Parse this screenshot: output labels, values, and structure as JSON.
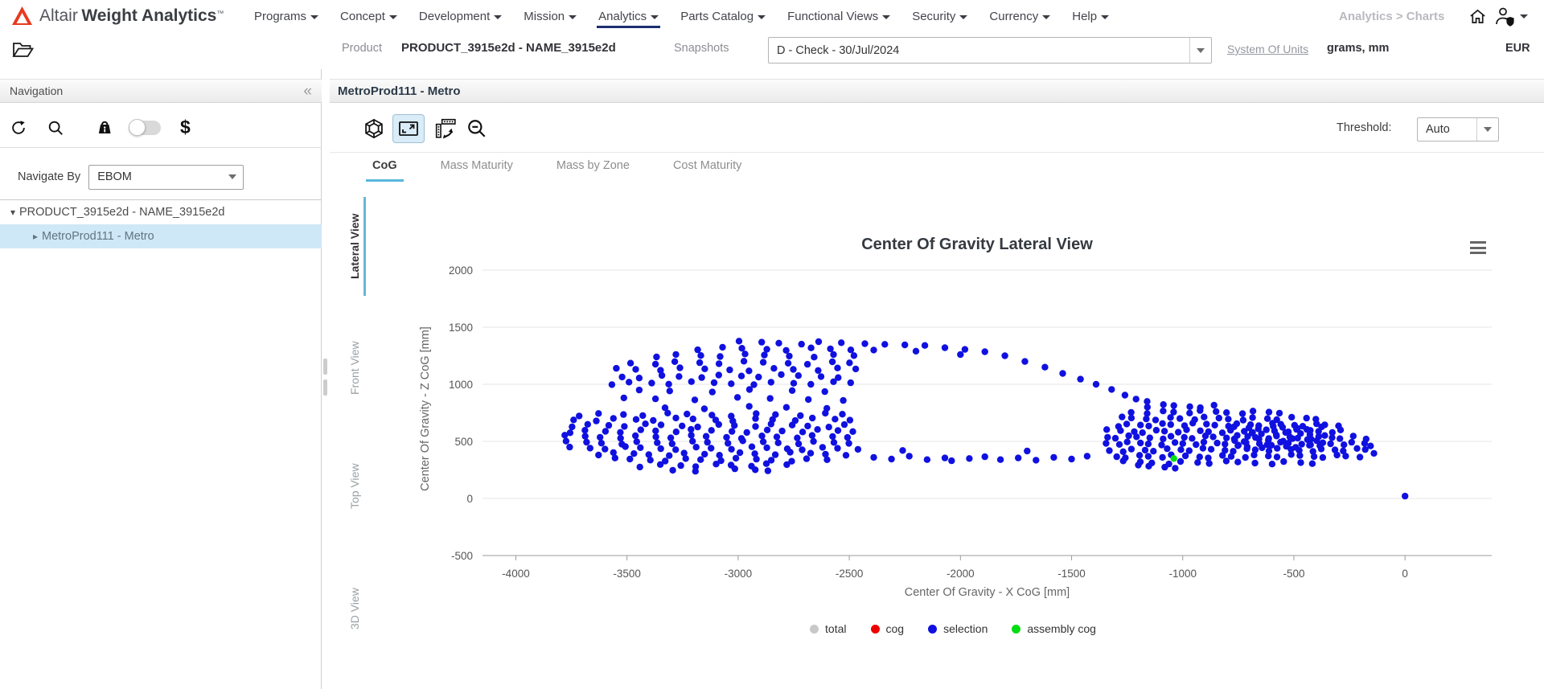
{
  "header": {
    "brand": {
      "company": "Altair",
      "product": "Weight Analytics",
      "tm": "™"
    },
    "menus": [
      {
        "label": "Programs"
      },
      {
        "label": "Concept"
      },
      {
        "label": "Development"
      },
      {
        "label": "Mission"
      },
      {
        "label": "Analytics",
        "active": true
      },
      {
        "label": "Parts Catalog"
      },
      {
        "label": "Functional Views"
      },
      {
        "label": "Security"
      },
      {
        "label": "Currency"
      },
      {
        "label": "Help"
      }
    ],
    "breadcrumb": "Analytics > Charts"
  },
  "subheader": {
    "product_label": "Product",
    "product_value": "PRODUCT_3915e2d - NAME_3915e2d",
    "snapshots_label": "Snapshots",
    "snapshot_value": "D - Check - 30/Jul/2024",
    "units_link": "System Of Units",
    "units_value": "grams, mm",
    "currency": "EUR"
  },
  "navigation": {
    "title": "Navigation",
    "collapse_glyph": "«",
    "navigate_by_label": "Navigate By",
    "navigate_by_value": "EBOM",
    "dollar_glyph": "$",
    "tree": [
      {
        "label": "PRODUCT_3915e2d - NAME_3915e2d",
        "level": 0,
        "expanded": true,
        "selected": false
      },
      {
        "label": "MetroProd111 - Metro",
        "level": 1,
        "expanded": false,
        "selected": true
      }
    ]
  },
  "main": {
    "title": "MetroProd111 - Metro",
    "threshold_label": "Threshold:",
    "threshold_value": "Auto",
    "tabs": [
      {
        "label": "CoG",
        "active": true
      },
      {
        "label": "Mass Maturity",
        "active": false
      },
      {
        "label": "Mass by Zone",
        "active": false
      },
      {
        "label": "Cost Maturity",
        "active": false
      }
    ],
    "view_tabs": [
      {
        "label": "Lateral View",
        "active": true
      },
      {
        "label": "Front View",
        "active": false
      },
      {
        "label": "Top View",
        "active": false
      },
      {
        "label": "3D View",
        "active": false
      }
    ]
  },
  "icons": [
    "altair-logo",
    "folder-open-icon",
    "home-icon",
    "user-shield-icon",
    "refresh-icon",
    "search-icon",
    "weight-info-icon",
    "toggle-switch",
    "dollar-icon",
    "wireframe-sphere-icon",
    "fit-view-icon",
    "swap-axes-icon",
    "zoom-out-icon",
    "chart-menu-icon",
    "collapse-chevron-icon"
  ],
  "chart_data": {
    "type": "scatter",
    "title": "Center Of Gravity Lateral View",
    "xlabel": "Center Of Gravity - X CoG [mm]",
    "ylabel": "Center Of Gravity - Z CoG [mm]",
    "xlim": [
      -4150,
      390
    ],
    "ylim": [
      -500,
      2070
    ],
    "xticks": [
      -4000,
      -3500,
      -3000,
      -2500,
      -2000,
      -1500,
      -1000,
      -500,
      0
    ],
    "yticks": [
      2000,
      1500,
      1000,
      500,
      0,
      -500
    ],
    "grid": "horizontal",
    "legend_position": "bottom",
    "series": [
      {
        "name": "total",
        "color": "#c8c8c8",
        "points": []
      },
      {
        "name": "cog",
        "color": "#ee0000",
        "points": []
      },
      {
        "name": "selection",
        "color": "#1010e0",
        "rows": [
          {
            "z": 290,
            "xs": [
              -3430,
              -3350,
              -3270,
              -3190,
              -3110,
              -3030,
              -2950,
              -2870,
              -2790
            ]
          },
          {
            "z": 250,
            "xs": [
              -3290,
              -3200,
              -3010,
              -2930,
              -2860
            ]
          },
          {
            "z": 340,
            "xs": [
              -3560,
              -3480,
              -3400,
              -3320,
              -3240,
              -3160,
              -3080,
              -3000,
              -2920,
              -2840,
              -2760,
              -2680,
              -2600
            ]
          },
          {
            "z": 390,
            "xs": [
              -3640,
              -3560,
              -3480,
              -3400,
              -3320,
              -3240,
              -3160,
              -3080,
              -3000,
              -2920,
              -2840,
              -2760,
              -2680,
              -2600,
              -2520
            ]
          },
          {
            "z": 440,
            "xs": [
              -3750,
              -3670,
              -3590,
              -3510,
              -3430,
              -3350,
              -3270,
              -3190,
              -3110,
              -3030,
              -2950,
              -2870,
              -2790,
              -2710,
              -2630,
              -2550,
              -2470
            ]
          },
          {
            "z": 490,
            "xs": [
              -3770,
              -3690,
              -3610,
              -3530,
              -3450,
              -3370,
              -3290,
              -3210,
              -3130,
              -3050,
              -2970,
              -2890,
              -2810,
              -2730,
              -2650,
              -2570,
              -2490
            ]
          },
          {
            "z": 540,
            "xs": [
              -3780,
              -3700,
              -3620,
              -3540,
              -3460,
              -3380,
              -3300,
              -3220,
              -3140,
              -3060,
              -2980,
              -2900,
              -2820,
              -2740,
              -2660,
              -2580,
              -2500
            ]
          },
          {
            "z": 590,
            "xs": [
              -3760,
              -3680,
              -3600,
              -3520,
              -3440,
              -3360,
              -3280,
              -3200,
              -3120,
              -3040,
              -2960,
              -2880,
              -2800,
              -2720,
              -2640,
              -2560,
              -2480
            ]
          },
          {
            "z": 640,
            "xs": [
              -3755,
              -3672,
              -3589,
              -3506,
              -3423,
              -3340,
              -3257,
              -3174,
              -3091,
              -3008,
              -2925,
              -2842,
              -2759,
              -2676,
              -2593,
              -2510
            ]
          },
          {
            "z": 690,
            "xs": [
              -3740,
              -3650,
              -3560,
              -3470,
              -3380,
              -3290,
              -3200,
              -3110,
              -3020,
              -2930,
              -2840,
              -2750,
              -2660,
              -2570,
              -2490
            ]
          },
          {
            "z": 735,
            "xs": [
              -3720,
              -3620,
              -3520,
              -3420,
              -3320,
              -3220,
              -3120,
              -3020,
              -2920,
              -2820,
              -2720,
              -2620,
              -2530
            ]
          },
          {
            "z": 800,
            "xs": [
              -3340,
              -3150,
              -2960,
              -2780,
              -2610
            ]
          },
          {
            "z": 870,
            "xs": [
              -3510,
              -3380,
              -3190,
              -3010,
              -2850,
              -2690,
              -2520
            ]
          },
          {
            "z": 940,
            "xs": [
              -3450,
              -3300,
              -3120,
              -2940,
              -2760,
              -2600
            ]
          },
          {
            "z": 1010,
            "xs": [
              -3570,
              -3480,
              -3390,
              -3300,
              -3210,
              -3120,
              -3030,
              -2940,
              -2850,
              -2760,
              -2670,
              -2580,
              -2490
            ]
          },
          {
            "z": 1070,
            "xs": [
              -3530,
              -3440,
              -3350,
              -3260,
              -3170,
              -3080,
              -2990,
              -2900,
              -2810,
              -2720,
              -2630,
              -2540
            ]
          },
          {
            "z": 1130,
            "xs": [
              -3550,
              -3450,
              -3350,
              -3250,
              -3150,
              -3050,
              -2950,
              -2850,
              -2750,
              -2650,
              -2550,
              -2480
            ]
          },
          {
            "z": 1190,
            "xs": [
              -3480,
              -3380,
              -3280,
              -3180,
              -3080,
              -2980,
              -2880,
              -2780,
              -2680,
              -2580,
              -2490
            ]
          },
          {
            "z": 1250,
            "xs": [
              -3370,
              -3270,
              -3170,
              -3070,
              -2970,
              -2870,
              -2770,
              -2670,
              -2570,
              -2490
            ]
          },
          {
            "z": 1310,
            "xs": [
              -3180,
              -3080,
              -2980,
              -2880,
              -2780,
              -2680,
              -2580,
              -2500
            ]
          },
          {
            "z": 1365,
            "xs": [
              -2990,
              -2900,
              -2810,
              -2720,
              -2630,
              -2540
            ]
          },
          {
            "z": 810,
            "xs": [
              -1150,
              -1090,
              -1030,
              -970,
              -910,
              -860
            ]
          },
          {
            "z": 755,
            "xs": [
              -1220,
              -1160,
              -1100,
              -1040,
              -980,
              -920,
              -860,
              -800,
              -740,
              -680,
              -620,
              -560
            ]
          },
          {
            "z": 700,
            "xs": [
              -1280,
              -1225,
              -1170,
              -1115,
              -1060,
              -1005,
              -950,
              -895,
              -840,
              -785,
              -730,
              -675,
              -620,
              -565,
              -510,
              -455,
              -400
            ]
          },
          {
            "z": 645,
            "xs": [
              -1300,
              -1250,
              -1200,
              -1150,
              -1100,
              -1050,
              -1000,
              -950,
              -900,
              -850,
              -800,
              -750,
              -700,
              -650,
              -600,
              -550,
              -500,
              -450,
              -400,
              -350,
              -300
            ]
          },
          {
            "z": 590,
            "xs": [
              -1330,
              -1280,
              -1230,
              -1180,
              -1130,
              -1080,
              -1030,
              -980,
              -930,
              -880,
              -830,
              -780,
              -730,
              -680,
              -630,
              -580,
              -530,
              -480,
              -430,
              -380,
              -330,
              -280
            ]
          },
          {
            "z": 535,
            "xs": [
              -1340,
              -1292,
              -1244,
              -1196,
              -1148,
              -1100,
              -1052,
              -1004,
              -956,
              -908,
              -860,
              -812,
              -764,
              -716,
              -668,
              -620,
              -572,
              -524,
              -476,
              -428,
              -380,
              -332,
              -284,
              -236
            ]
          },
          {
            "z": 480,
            "xs": [
              -1335,
              -1287,
              -1239,
              -1191,
              -1143,
              -1095,
              -1047,
              -999,
              -951,
              -903,
              -855,
              -807,
              -759,
              -711,
              -663,
              -615,
              -567,
              -519,
              -471,
              -423,
              -375,
              -327,
              -279,
              -231,
              -185
            ]
          },
          {
            "z": 425,
            "xs": [
              -1320,
              -1270,
              -1220,
              -1170,
              -1120,
              -1070,
              -1020,
              -970,
              -920,
              -870,
              -820,
              -770,
              -720,
              -670,
              -620,
              -570,
              -520,
              -470,
              -420,
              -370,
              -320,
              -270,
              -220,
              -170
            ]
          },
          {
            "z": 370,
            "xs": [
              -1300,
              -1248,
              -1196,
              -1144,
              -1092,
              -1040,
              -988,
              -936,
              -884,
              -832,
              -780,
              -728,
              -676,
              -624,
              -572,
              -520,
              -468,
              -416,
              -364,
              -312,
              -260,
              -208
            ]
          },
          {
            "z": 315,
            "xs": [
              -1260,
              -1195,
              -1130,
              -1065,
              -1000,
              -935,
              -870,
              -805,
              -740,
              -675,
              -610,
              -545,
              -480,
              -415
            ]
          },
          {
            "z": 280,
            "xs": [
              -1210,
              -1150,
              -1090,
              -1030
            ]
          },
          {
            "z": 455,
            "xs": [
              -760,
              -705,
              -650,
              -595,
              -540,
              -485,
              -430,
              -375
            ]
          },
          {
            "z": 510,
            "xs": [
              -770,
              -715,
              -660,
              -605,
              -550,
              -495,
              -440,
              -385
            ]
          },
          {
            "z": 565,
            "xs": [
              -755,
              -700,
              -645,
              -590,
              -535,
              -480,
              -425,
              -370
            ]
          },
          {
            "z": 620,
            "xs": [
              -765,
              -710,
              -655,
              -600,
              -545,
              -490,
              -435,
              -380
            ]
          }
        ],
        "points": [
          [
            -2430,
            1355
          ],
          [
            -2340,
            1350
          ],
          [
            -2250,
            1345
          ],
          [
            -2160,
            1340
          ],
          [
            -2070,
            1320
          ],
          [
            -1980,
            1305
          ],
          [
            -1890,
            1285
          ],
          [
            -1800,
            1250
          ],
          [
            -1710,
            1200
          ],
          [
            -1620,
            1150
          ],
          [
            -1540,
            1095
          ],
          [
            -1460,
            1045
          ],
          [
            -1390,
            1000
          ],
          [
            -1320,
            955
          ],
          [
            -1260,
            905
          ],
          [
            -2390,
            1300
          ],
          [
            -2200,
            1290
          ],
          [
            -2000,
            1260
          ],
          [
            -1210,
            870
          ],
          [
            -1160,
            850
          ],
          [
            -2390,
            360
          ],
          [
            -2310,
            345
          ],
          [
            -2230,
            370
          ],
          [
            -2150,
            340
          ],
          [
            -2070,
            355
          ],
          [
            -2040,
            330
          ],
          [
            -1960,
            350
          ],
          [
            -1890,
            365
          ],
          [
            -1820,
            340
          ],
          [
            -1740,
            355
          ],
          [
            -1660,
            335
          ],
          [
            -1580,
            360
          ],
          [
            -1500,
            345
          ],
          [
            -1430,
            370
          ],
          [
            -2260,
            420
          ],
          [
            -1700,
            415
          ],
          [
            -155,
            460
          ],
          [
            -140,
            395
          ],
          [
            -175,
            520
          ],
          [
            0,
            20
          ]
        ]
      },
      {
        "name": "assembly cog",
        "color": "#00dd11",
        "points": [
          [
            -1040,
            350
          ]
        ]
      }
    ]
  }
}
